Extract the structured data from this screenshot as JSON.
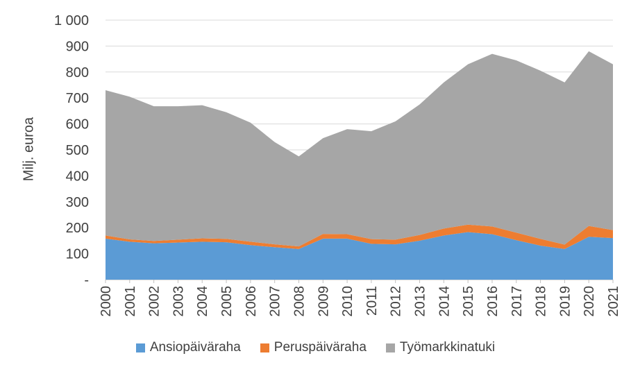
{
  "chart_data": {
    "type": "area",
    "stacked": true,
    "title": "",
    "xlabel": "",
    "ylabel": "Milj. euroa",
    "ylim": [
      0,
      1000
    ],
    "grid": true,
    "legend_position": "bottom",
    "categories": [
      "2000",
      "2001",
      "2002",
      "2003",
      "2004",
      "2005",
      "2006",
      "2007",
      "2008",
      "2009",
      "2010",
      "2011",
      "2012",
      "2013",
      "2014",
      "2015",
      "2016",
      "2017",
      "2018",
      "2019",
      "2020",
      "2021"
    ],
    "series": [
      {
        "key": "ansiopaivaraha",
        "name": "Ansiopäiväraha",
        "color": "#5B9BD5",
        "values": [
          158,
          146,
          140,
          143,
          146,
          144,
          133,
          125,
          118,
          158,
          158,
          138,
          136,
          150,
          170,
          183,
          175,
          152,
          131,
          118,
          165,
          160
        ]
      },
      {
        "key": "peruspaivaraha",
        "name": "Peruspäiväraha",
        "color": "#ED7D31",
        "values": [
          12,
          9,
          9,
          11,
          13,
          13,
          13,
          11,
          10,
          18,
          17,
          18,
          18,
          22,
          27,
          29,
          30,
          29,
          26,
          17,
          42,
          31
        ]
      },
      {
        "key": "tyomarkkinatuki",
        "name": "Työmarkkinatuki",
        "color": "#A6A6A6",
        "values": [
          560,
          550,
          519,
          514,
          513,
          488,
          459,
          394,
          347,
          369,
          405,
          416,
          456,
          503,
          563,
          618,
          665,
          664,
          648,
          625,
          673,
          639
        ]
      }
    ],
    "y_ticks": [
      {
        "value": 0,
        "label": "-"
      },
      {
        "value": 100,
        "label": "100"
      },
      {
        "value": 200,
        "label": "200"
      },
      {
        "value": 300,
        "label": "300"
      },
      {
        "value": 400,
        "label": "400"
      },
      {
        "value": 500,
        "label": "500"
      },
      {
        "value": 600,
        "label": "600"
      },
      {
        "value": 700,
        "label": "700"
      },
      {
        "value": 800,
        "label": "800"
      },
      {
        "value": 900,
        "label": "900"
      },
      {
        "value": 1000,
        "label": "1 000"
      }
    ]
  },
  "colors": {
    "gridline": "#D9D9D9",
    "axis_line": "#D9D9D9",
    "tick": "#BFBFBF",
    "axis_text": "#404040"
  }
}
